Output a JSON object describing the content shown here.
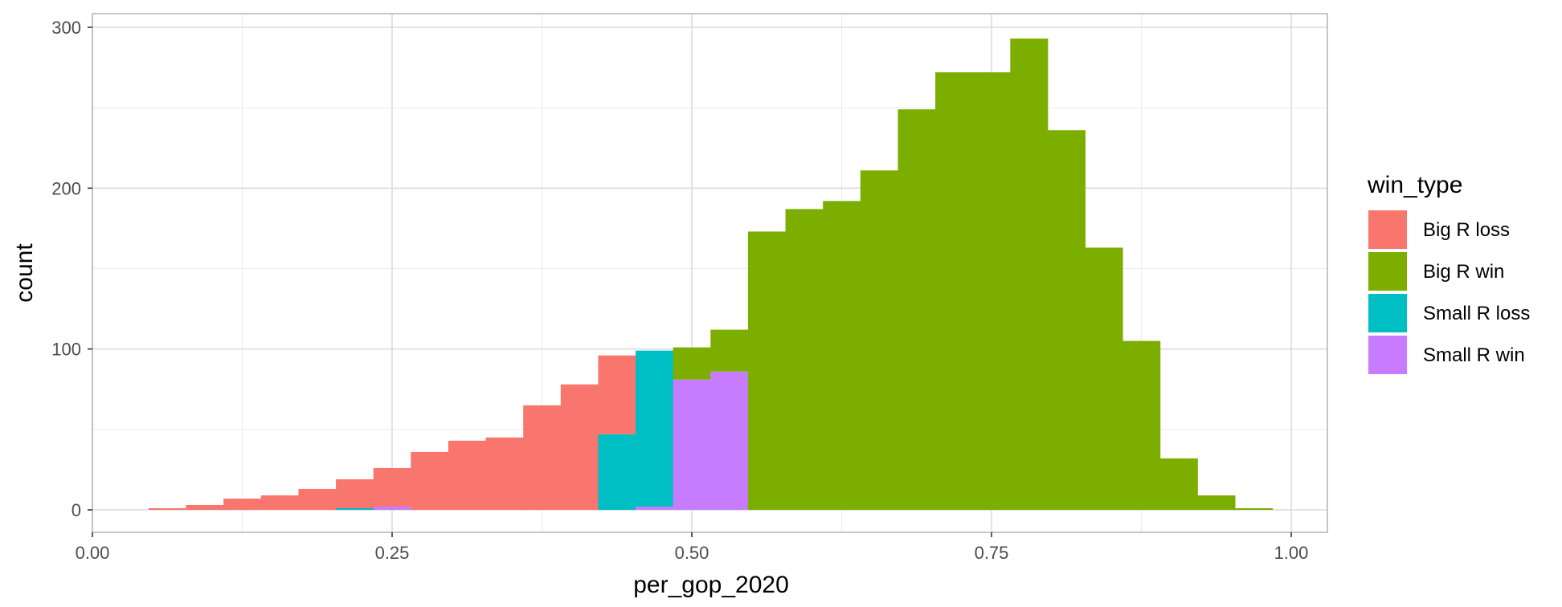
{
  "chart_data": {
    "type": "bar",
    "stacked": true,
    "histogram": true,
    "xlabel": "per_gop_2020",
    "ylabel": "count",
    "xlim": [
      0.0,
      1.03
    ],
    "ylim": [
      -13,
      310
    ],
    "x_ticks": [
      0.0,
      0.25,
      0.5,
      0.75,
      1.0
    ],
    "x_tick_labels": [
      "0.00",
      "0.25",
      "0.50",
      "0.75",
      "1.00"
    ],
    "y_ticks": [
      0,
      100,
      200,
      300
    ],
    "y_tick_labels": [
      "0",
      "100",
      "200",
      "300"
    ],
    "grid": true,
    "bin_width": 0.03125,
    "x": [
      0.0625,
      0.09375,
      0.125,
      0.15625,
      0.1875,
      0.21875,
      0.25,
      0.28125,
      0.3125,
      0.34375,
      0.375,
      0.40625,
      0.4375,
      0.46875,
      0.5,
      0.53125,
      0.5625,
      0.59375,
      0.625,
      0.65625,
      0.6875,
      0.71875,
      0.75,
      0.78125,
      0.8125,
      0.84375,
      0.875,
      0.90625,
      0.9375,
      0.96875
    ],
    "legend": {
      "title": "win_type",
      "position": "right",
      "items": [
        {
          "label": "Big R loss",
          "color": "#F8766D"
        },
        {
          "label": "Big R win",
          "color": "#7CAE00"
        },
        {
          "label": "Small R loss",
          "color": "#00BFC4"
        },
        {
          "label": "Small R win",
          "color": "#C77CFF"
        }
      ]
    },
    "series": [
      {
        "name": "Big R loss",
        "color": "#F8766D",
        "values": [
          1,
          3,
          7,
          9,
          13,
          18,
          24,
          36,
          43,
          45,
          65,
          78,
          49,
          0,
          0,
          0,
          0,
          0,
          0,
          0,
          0,
          0,
          0,
          0,
          0,
          0,
          0,
          0,
          0,
          0
        ]
      },
      {
        "name": "Big R win",
        "color": "#7CAE00",
        "values": [
          0,
          0,
          0,
          0,
          0,
          0,
          0,
          0,
          0,
          0,
          0,
          0,
          0,
          0,
          20,
          26,
          173,
          187,
          192,
          211,
          249,
          272,
          272,
          293,
          236,
          163,
          105,
          32,
          9,
          1
        ]
      },
      {
        "name": "Small R loss",
        "color": "#00BFC4",
        "values": [
          0,
          0,
          0,
          0,
          0,
          1,
          0,
          0,
          0,
          0,
          0,
          0,
          47,
          97,
          0,
          0,
          0,
          0,
          0,
          0,
          0,
          0,
          0,
          0,
          0,
          0,
          0,
          0,
          0,
          0
        ]
      },
      {
        "name": "Small R win",
        "color": "#C77CFF",
        "values": [
          0,
          0,
          0,
          0,
          0,
          0,
          2,
          0,
          0,
          0,
          0,
          0,
          0,
          2,
          81,
          86,
          0,
          0,
          0,
          0,
          0,
          0,
          0,
          0,
          0,
          0,
          0,
          0,
          0,
          0
        ]
      }
    ]
  }
}
